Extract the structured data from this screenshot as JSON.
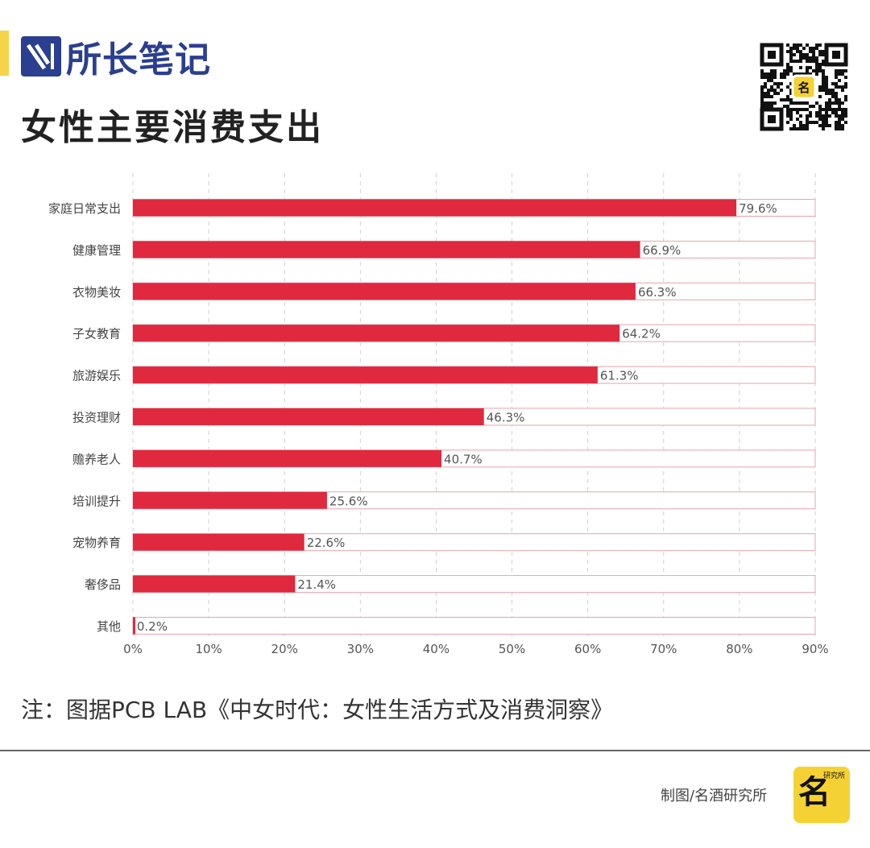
{
  "header": {
    "brand_name": "所长笔记",
    "title": "女性主要消费支出"
  },
  "chart_data": {
    "type": "bar",
    "orientation": "horizontal",
    "title": "女性主要消费支出",
    "categories": [
      "家庭日常支出",
      "健康管理",
      "衣物美妆",
      "子女教育",
      "旅游娱乐",
      "投资理财",
      "赡养老人",
      "培训提升",
      "宠物养育",
      "奢侈品",
      "其他"
    ],
    "values": [
      79.6,
      66.9,
      66.3,
      64.2,
      61.3,
      46.3,
      40.7,
      25.6,
      22.6,
      21.4,
      0.2
    ],
    "value_labels": [
      "79.6%",
      "66.9%",
      "66.3%",
      "64.2%",
      "61.3%",
      "46.3%",
      "40.7%",
      "25.6%",
      "22.6%",
      "21.4%",
      "0.2%"
    ],
    "xlim": [
      0,
      90
    ],
    "x_ticks": [
      "0%",
      "10%",
      "20%",
      "30%",
      "40%",
      "50%",
      "60%",
      "70%",
      "80%",
      "90%"
    ],
    "grid": "vertical dashed",
    "bar_color": "#e0293f",
    "track_color": "#e8a3ab"
  },
  "footer": {
    "source_note": "注：图据PCB LAB《中女时代：女性生活方式及消费洞察》",
    "credit": "制图/名酒研究所",
    "logo_mini": "研究所"
  },
  "colors": {
    "brand_blue": "#2a3f8f",
    "accent_yellow": "#f5d44a",
    "logo_yellow": "#f5d233"
  }
}
